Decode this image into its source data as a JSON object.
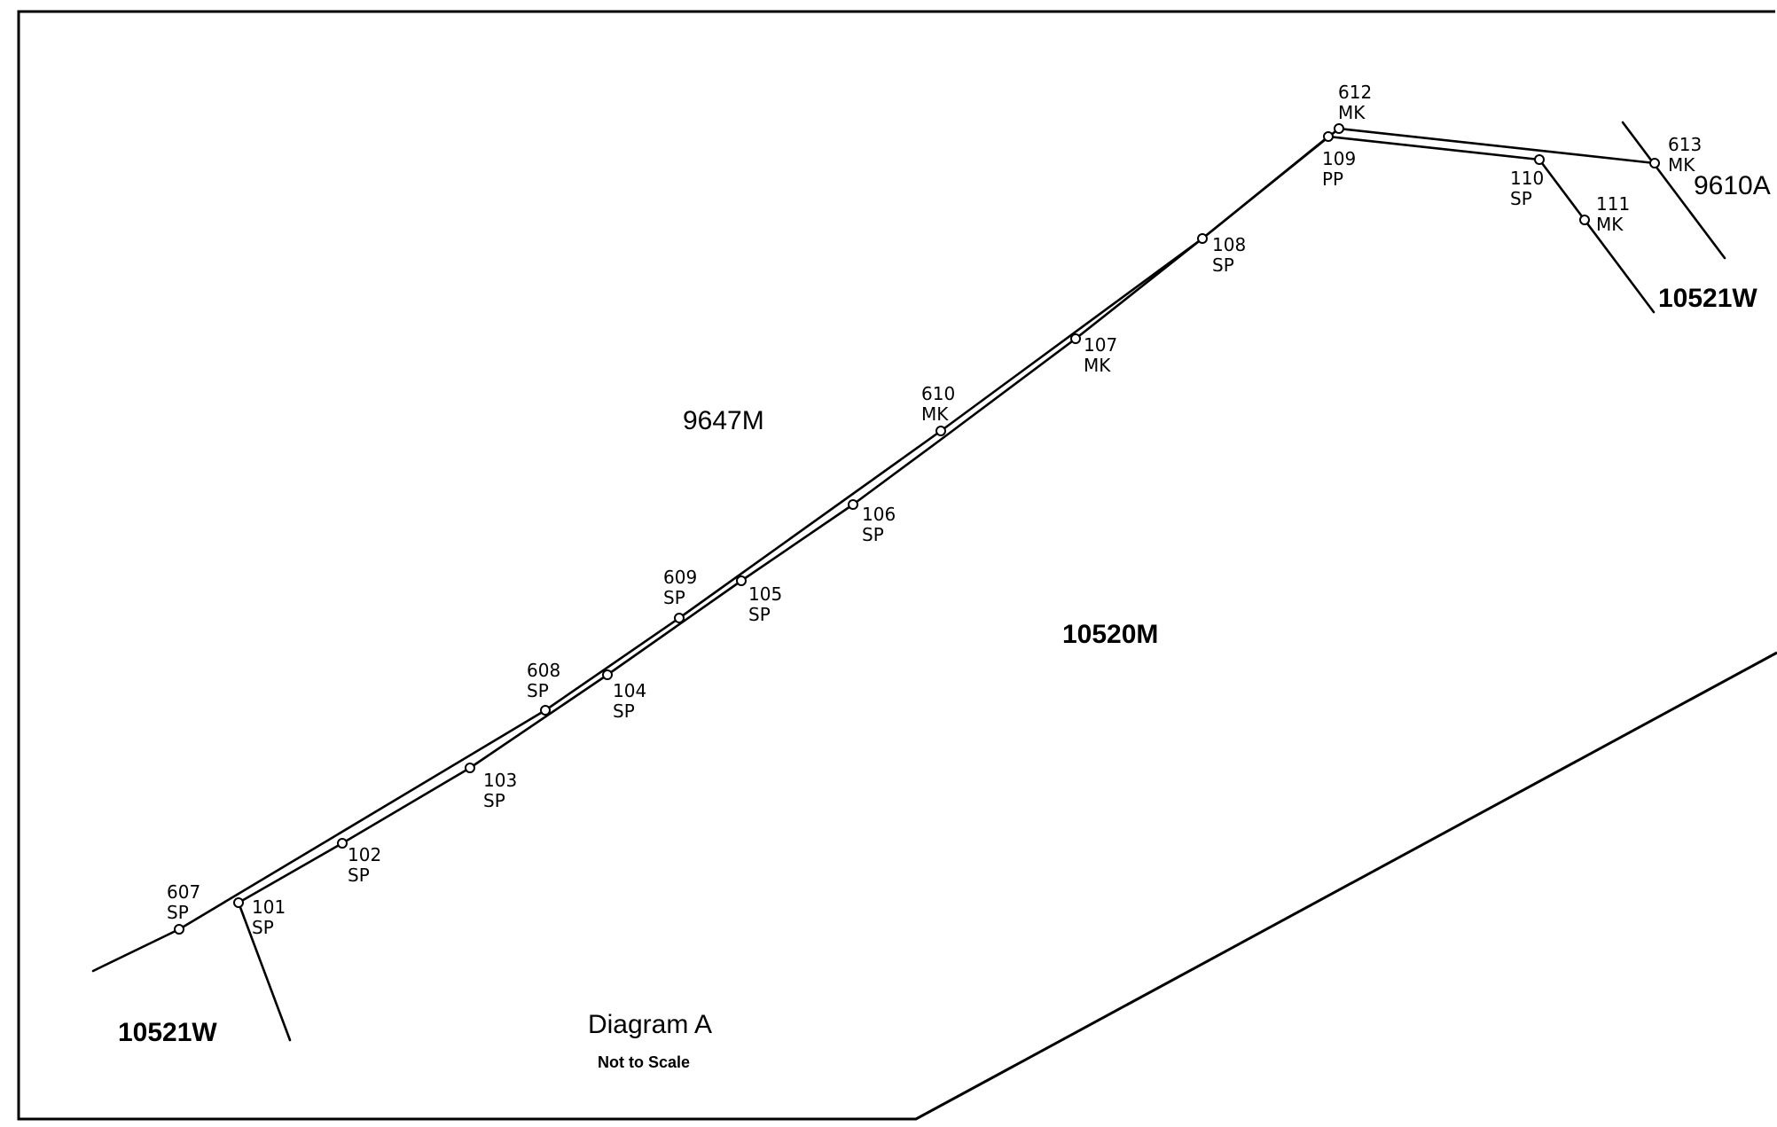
{
  "diagram": {
    "title": "Diagram A",
    "subtitle": "Not to Scale"
  },
  "parcels": [
    {
      "id": "p-9647m",
      "label": "9647M"
    },
    {
      "id": "p-10520m",
      "label": "10520M"
    },
    {
      "id": "p-9610a",
      "label": "9610A"
    },
    {
      "id": "p-10521w-top",
      "label": "10521W"
    },
    {
      "id": "p-10521w-bottom",
      "label": "10521W"
    }
  ],
  "points": [
    {
      "id": "607",
      "number": "607",
      "code": "SP"
    },
    {
      "id": "608",
      "number": "608",
      "code": "SP"
    },
    {
      "id": "609",
      "number": "609",
      "code": "SP"
    },
    {
      "id": "610",
      "number": "610",
      "code": "MK"
    },
    {
      "id": "612",
      "number": "612",
      "code": "MK"
    },
    {
      "id": "613",
      "number": "613",
      "code": "MK"
    },
    {
      "id": "101",
      "number": "101",
      "code": "SP"
    },
    {
      "id": "102",
      "number": "102",
      "code": "SP"
    },
    {
      "id": "103",
      "number": "103",
      "code": "SP"
    },
    {
      "id": "104",
      "number": "104",
      "code": "SP"
    },
    {
      "id": "105",
      "number": "105",
      "code": "SP"
    },
    {
      "id": "106",
      "number": "106",
      "code": "SP"
    },
    {
      "id": "107",
      "number": "107",
      "code": "MK"
    },
    {
      "id": "108",
      "number": "108",
      "code": "SP"
    },
    {
      "id": "109",
      "number": "109",
      "code": "PP"
    },
    {
      "id": "110",
      "number": "110",
      "code": "SP"
    },
    {
      "id": "111",
      "number": "111",
      "code": "MK"
    }
  ]
}
